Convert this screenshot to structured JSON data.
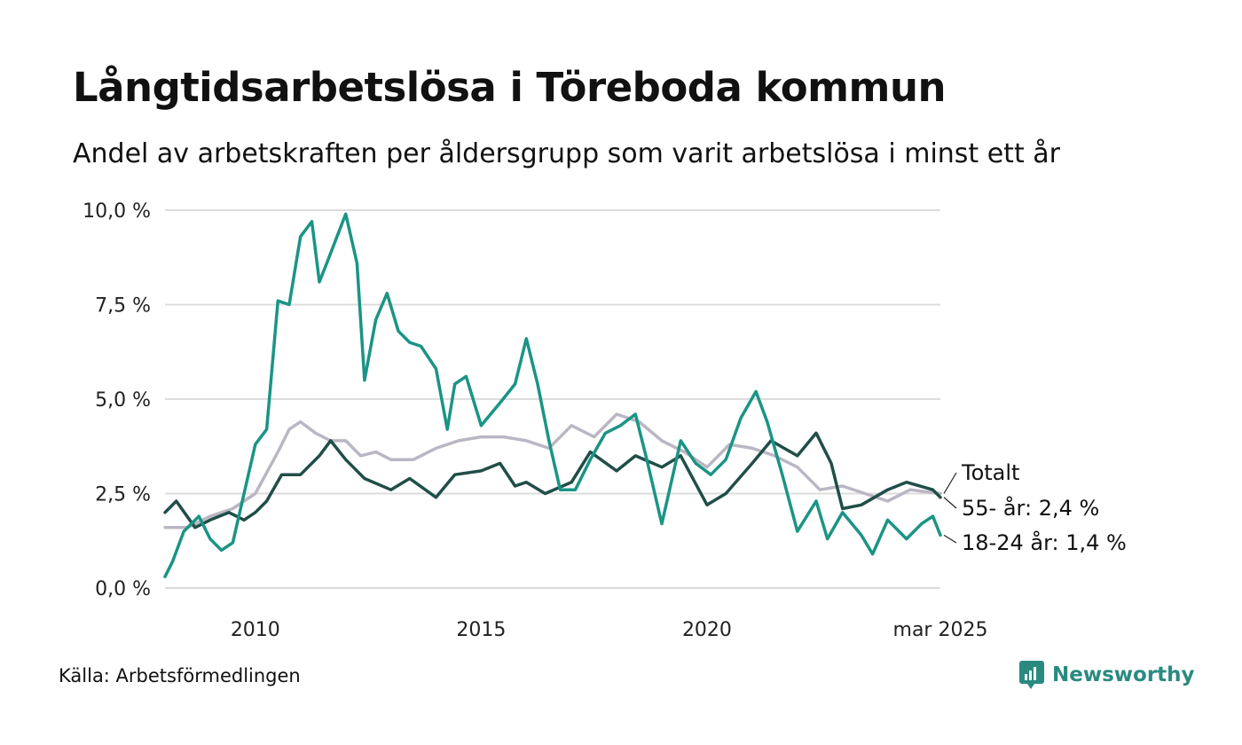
{
  "header": {
    "title": "Långtidsarbetslösa i Töreboda kommun",
    "subtitle": "Andel av arbetskraften per åldersgrupp som varit arbetslösa i minst ett år"
  },
  "footer": {
    "source": "Källa: Arbetsförmedlingen",
    "brand": "Newsworthy"
  },
  "colors": {
    "youth": "#1a9485",
    "senior": "#204e48",
    "total": "#bbb6c4",
    "grid": "#dddddd",
    "brand": "#2a8a80"
  },
  "chart_data": {
    "type": "line",
    "title": "Långtidsarbetslösa i Töreboda kommun",
    "xlim": [
      "2008-01",
      "2025-03"
    ],
    "ylim": [
      0,
      10
    ],
    "x_ticks": [
      {
        "x": "2010-01",
        "label": "2010"
      },
      {
        "x": "2015-01",
        "label": "2015"
      },
      {
        "x": "2020-01",
        "label": "2020"
      },
      {
        "x": "2025-03",
        "label": "mar 2025"
      }
    ],
    "y_ticks": [
      {
        "y": 0,
        "label": "0,0 %"
      },
      {
        "y": 2.5,
        "label": "2,5 %"
      },
      {
        "y": 5,
        "label": "5,0 %"
      },
      {
        "y": 7.5,
        "label": "7,5 %"
      },
      {
        "y": 10,
        "label": "10,0 %"
      }
    ],
    "grid": true,
    "series": [
      {
        "key": "total",
        "label": "Totalt",
        "color": "#bbb6c4",
        "points": [
          [
            "2008-01",
            1.6
          ],
          [
            "2008-07",
            1.6
          ],
          [
            "2009-01",
            1.9
          ],
          [
            "2009-07",
            2.1
          ],
          [
            "2010-01",
            2.5
          ],
          [
            "2010-07",
            3.6
          ],
          [
            "2010-10",
            4.2
          ],
          [
            "2011-01",
            4.4
          ],
          [
            "2011-05",
            4.1
          ],
          [
            "2011-09",
            3.9
          ],
          [
            "2012-01",
            3.9
          ],
          [
            "2012-05",
            3.5
          ],
          [
            "2012-09",
            3.6
          ],
          [
            "2013-01",
            3.4
          ],
          [
            "2013-07",
            3.4
          ],
          [
            "2014-01",
            3.7
          ],
          [
            "2014-07",
            3.9
          ],
          [
            "2015-01",
            4.0
          ],
          [
            "2015-07",
            4.0
          ],
          [
            "2016-01",
            3.9
          ],
          [
            "2016-07",
            3.7
          ],
          [
            "2017-01",
            4.3
          ],
          [
            "2017-07",
            4.0
          ],
          [
            "2018-01",
            4.6
          ],
          [
            "2018-07",
            4.4
          ],
          [
            "2019-01",
            3.9
          ],
          [
            "2019-07",
            3.6
          ],
          [
            "2020-01",
            3.2
          ],
          [
            "2020-07",
            3.8
          ],
          [
            "2021-01",
            3.7
          ],
          [
            "2021-07",
            3.5
          ],
          [
            "2022-01",
            3.2
          ],
          [
            "2022-07",
            2.6
          ],
          [
            "2023-01",
            2.7
          ],
          [
            "2023-07",
            2.5
          ],
          [
            "2024-01",
            2.3
          ],
          [
            "2024-07",
            2.6
          ],
          [
            "2025-03",
            2.5
          ]
        ]
      },
      {
        "key": "senior",
        "label": "55- år: 2,4 %",
        "color": "#204e48",
        "points": [
          [
            "2008-01",
            2.0
          ],
          [
            "2008-04",
            2.3
          ],
          [
            "2008-09",
            1.6
          ],
          [
            "2009-01",
            1.8
          ],
          [
            "2009-06",
            2.0
          ],
          [
            "2009-10",
            1.8
          ],
          [
            "2010-01",
            2.0
          ],
          [
            "2010-04",
            2.3
          ],
          [
            "2010-08",
            3.0
          ],
          [
            "2011-01",
            3.0
          ],
          [
            "2011-06",
            3.5
          ],
          [
            "2011-09",
            3.9
          ],
          [
            "2012-01",
            3.4
          ],
          [
            "2012-06",
            2.9
          ],
          [
            "2013-01",
            2.6
          ],
          [
            "2013-06",
            2.9
          ],
          [
            "2014-01",
            2.4
          ],
          [
            "2014-06",
            3.0
          ],
          [
            "2015-01",
            3.1
          ],
          [
            "2015-06",
            3.3
          ],
          [
            "2015-10",
            2.7
          ],
          [
            "2016-01",
            2.8
          ],
          [
            "2016-06",
            2.5
          ],
          [
            "2017-01",
            2.8
          ],
          [
            "2017-06",
            3.6
          ],
          [
            "2018-01",
            3.1
          ],
          [
            "2018-06",
            3.5
          ],
          [
            "2019-01",
            3.2
          ],
          [
            "2019-06",
            3.5
          ],
          [
            "2020-01",
            2.2
          ],
          [
            "2020-06",
            2.5
          ],
          [
            "2021-01",
            3.3
          ],
          [
            "2021-06",
            3.9
          ],
          [
            "2022-01",
            3.5
          ],
          [
            "2022-06",
            4.1
          ],
          [
            "2022-10",
            3.3
          ],
          [
            "2023-01",
            2.1
          ],
          [
            "2023-06",
            2.2
          ],
          [
            "2024-01",
            2.6
          ],
          [
            "2024-06",
            2.8
          ],
          [
            "2025-01",
            2.6
          ],
          [
            "2025-03",
            2.4
          ]
        ]
      },
      {
        "key": "youth",
        "label": "18-24 år: 1,4 %",
        "color": "#1a9485",
        "points": [
          [
            "2008-01",
            0.3
          ],
          [
            "2008-03",
            0.7
          ],
          [
            "2008-06",
            1.5
          ],
          [
            "2008-10",
            1.9
          ],
          [
            "2009-01",
            1.3
          ],
          [
            "2009-04",
            1.0
          ],
          [
            "2009-07",
            1.2
          ],
          [
            "2010-01",
            3.8
          ],
          [
            "2010-04",
            4.2
          ],
          [
            "2010-07",
            7.6
          ],
          [
            "2010-10",
            7.5
          ],
          [
            "2011-01",
            9.3
          ],
          [
            "2011-04",
            9.7
          ],
          [
            "2011-06",
            8.1
          ],
          [
            "2011-08",
            8.6
          ],
          [
            "2012-01",
            9.9
          ],
          [
            "2012-04",
            8.6
          ],
          [
            "2012-06",
            5.5
          ],
          [
            "2012-09",
            7.1
          ],
          [
            "2012-12",
            7.8
          ],
          [
            "2013-03",
            6.8
          ],
          [
            "2013-06",
            6.5
          ],
          [
            "2013-09",
            6.4
          ],
          [
            "2014-01",
            5.8
          ],
          [
            "2014-04",
            4.2
          ],
          [
            "2014-06",
            5.4
          ],
          [
            "2014-09",
            5.6
          ],
          [
            "2015-01",
            4.3
          ],
          [
            "2015-06",
            4.9
          ],
          [
            "2015-10",
            5.4
          ],
          [
            "2016-01",
            6.6
          ],
          [
            "2016-04",
            5.4
          ],
          [
            "2016-07",
            3.9
          ],
          [
            "2016-10",
            2.6
          ],
          [
            "2017-02",
            2.6
          ],
          [
            "2017-06",
            3.4
          ],
          [
            "2017-10",
            4.1
          ],
          [
            "2018-02",
            4.3
          ],
          [
            "2018-06",
            4.6
          ],
          [
            "2018-09",
            3.4
          ],
          [
            "2019-01",
            1.7
          ],
          [
            "2019-06",
            3.9
          ],
          [
            "2019-10",
            3.3
          ],
          [
            "2020-02",
            3.0
          ],
          [
            "2020-06",
            3.4
          ],
          [
            "2020-10",
            4.5
          ],
          [
            "2021-02",
            5.2
          ],
          [
            "2021-05",
            4.4
          ],
          [
            "2021-09",
            3.0
          ],
          [
            "2022-01",
            1.5
          ],
          [
            "2022-06",
            2.3
          ],
          [
            "2022-09",
            1.3
          ],
          [
            "2023-01",
            2.0
          ],
          [
            "2023-06",
            1.4
          ],
          [
            "2023-09",
            0.9
          ],
          [
            "2024-01",
            1.8
          ],
          [
            "2024-06",
            1.3
          ],
          [
            "2024-10",
            1.7
          ],
          [
            "2025-01",
            1.9
          ],
          [
            "2025-03",
            1.4
          ]
        ]
      }
    ]
  }
}
